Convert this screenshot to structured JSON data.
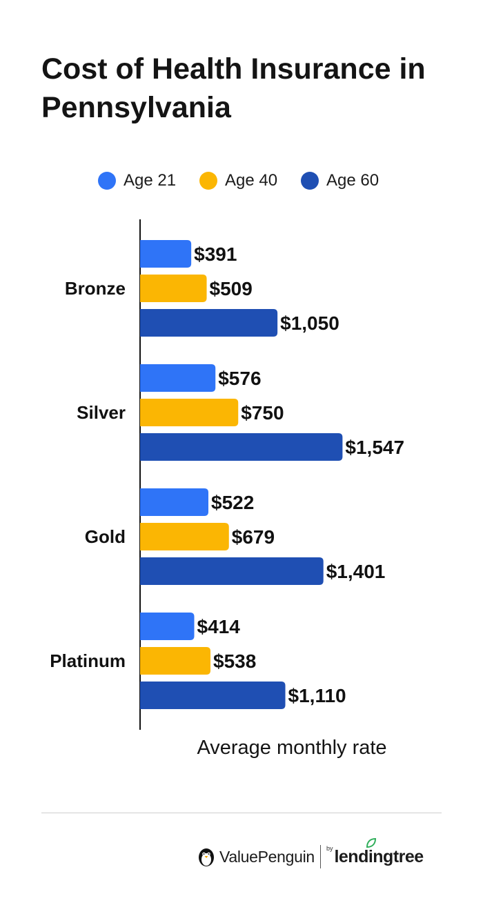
{
  "chart_data": {
    "type": "bar",
    "orientation": "horizontal",
    "title": "Cost of Health Insurance in Pennsylvania",
    "xlabel": "Average monthly rate",
    "ylabel": "",
    "categories": [
      "Bronze",
      "Silver",
      "Gold",
      "Platinum"
    ],
    "series": [
      {
        "name": "Age 21",
        "color": "#2f74f7",
        "values": [
          391,
          576,
          522,
          414
        ],
        "labels": [
          "$391",
          "$576",
          "$522",
          "$414"
        ]
      },
      {
        "name": "Age 40",
        "color": "#fbb603",
        "values": [
          509,
          750,
          679,
          538
        ],
        "labels": [
          "$509",
          "$750",
          "$679",
          "$538"
        ]
      },
      {
        "name": "Age 60",
        "color": "#1f4fb3",
        "values": [
          1050,
          1547,
          1401,
          1110
        ],
        "labels": [
          "$1,050",
          "$1,547",
          "$1,401",
          "$1,110"
        ]
      }
    ],
    "xlim": [
      0,
      2320
    ],
    "grid": false,
    "legend": "top-center"
  },
  "branding": {
    "logo_name": "ValuePenguin",
    "by": "by",
    "partner": "lendingtree",
    "logo_icon": "penguin-icon",
    "partner_icon": "leaf-icon"
  }
}
